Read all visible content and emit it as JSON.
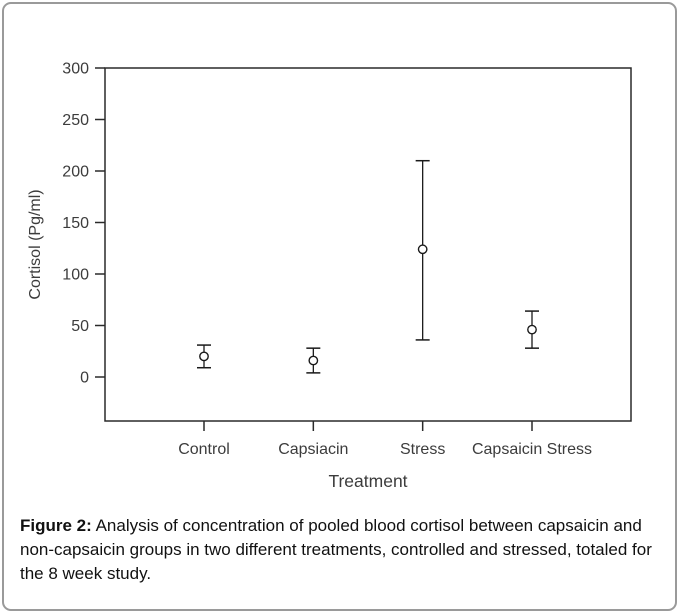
{
  "page": {
    "background": "#ffffff",
    "border_color": "#9a9a9a"
  },
  "chart_data": {
    "type": "scatter",
    "title": "",
    "xlabel": "Treatment",
    "ylabel": "Cortisol (Pg/ml)",
    "categories": [
      "Control",
      "Capsiacin",
      "Stress",
      "Capsaicin Stress"
    ],
    "series": [
      {
        "name": "Pooled blood cortisol",
        "values": [
          20,
          16,
          124,
          46
        ],
        "error_low": [
          9,
          4,
          36,
          28
        ],
        "error_high": [
          31,
          28,
          210,
          64
        ]
      }
    ],
    "yticks": [
      0,
      50,
      100,
      150,
      200,
      250,
      300
    ],
    "ylim": [
      -43,
      300
    ],
    "grid": false,
    "legend": false,
    "marker": "open-circle",
    "marker_color": "#1a1a1a",
    "axis_color": "#2a2a2a",
    "label_color": "#3c3c3c"
  },
  "caption": {
    "label": "Figure 2:",
    "text": " Analysis of concentration of pooled blood cortisol between capsaicin and non-capsaicin groups in two different treatments, controlled and stressed, totaled for the 8 week study."
  }
}
